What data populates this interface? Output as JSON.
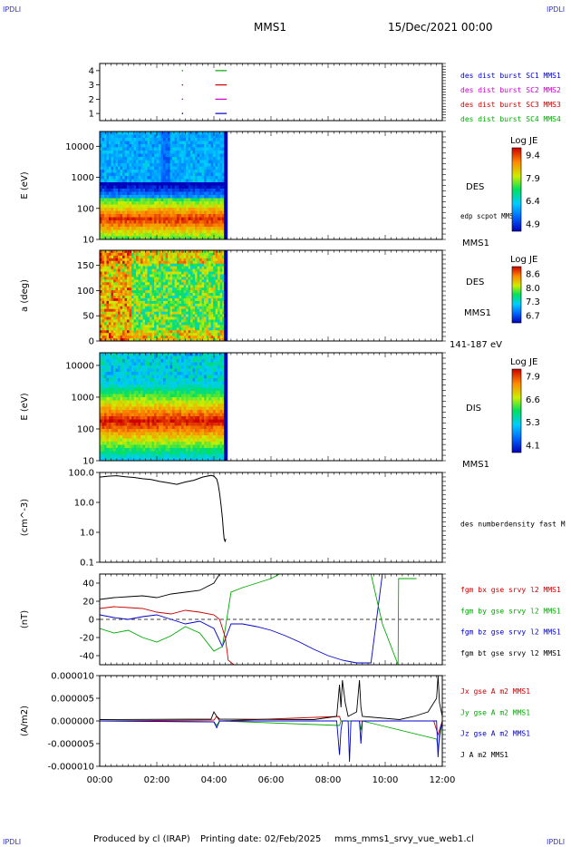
{
  "corner_labels": {
    "tl": "IPDLI",
    "tr": "IPDLI",
    "bl": "IPDLI",
    "br": "IPDLI"
  },
  "header": {
    "spacecraft": "MMS1",
    "date": "15/Dec/2021 00:00"
  },
  "footer": {
    "produced_by": "Produced by cl (IRAP)",
    "printing_date": "Printing date: 02/Feb/2025",
    "file": "mms_mms1_srvy_vue_web1.cl"
  },
  "colors": {
    "mms1": "#0000cc",
    "mms2": "#cc00cc",
    "mms3": "#cc0000",
    "mms4": "#00aa00",
    "bt": "#000000"
  },
  "chart_data": [
    {
      "type": "scatter",
      "id": "burst",
      "yticks": [
        "1",
        "2",
        "3",
        "4"
      ],
      "ylim": [
        0.5,
        4.5
      ],
      "legend": [
        {
          "label": "des dist burst SC1 MMS1",
          "color": "#0000cc"
        },
        {
          "label": "des dist burst SC2 MMS2",
          "color": "#cc00cc"
        },
        {
          "label": "des dist burst SC3 MMS3",
          "color": "#cc0000"
        },
        {
          "label": "des dist burst SC4 MMS4",
          "color": "#00aa00"
        }
      ],
      "segments": [
        {
          "sc": 1,
          "start": 4.05,
          "end": 4.45,
          "color": "#0000cc"
        },
        {
          "sc": 2,
          "start": 4.05,
          "end": 4.45,
          "color": "#cc00cc"
        },
        {
          "sc": 3,
          "start": 4.05,
          "end": 4.45,
          "color": "#cc0000"
        },
        {
          "sc": 4,
          "start": 4.05,
          "end": 4.45,
          "color": "#00aa00"
        }
      ],
      "dots": [
        {
          "sc": 1,
          "t": 2.9,
          "color": "#0000cc"
        },
        {
          "sc": 2,
          "t": 2.9,
          "color": "#cc00cc"
        },
        {
          "sc": 3,
          "t": 2.9,
          "color": "#cc0000"
        },
        {
          "sc": 4,
          "t": 2.9,
          "color": "#00aa00"
        }
      ]
    },
    {
      "type": "heatmap",
      "id": "des_energy",
      "ylabel": "E (eV)",
      "yscale": "log",
      "ylim": [
        10,
        30000
      ],
      "yticks": [
        "10",
        "100",
        "1000",
        "10000"
      ],
      "tlim": [
        0,
        4.45
      ],
      "side_label": "DES",
      "side_sub": "edp scpot MMS1",
      "side_bottom": "MMS1",
      "colorbar": {
        "title": "Log JE",
        "ticks": [
          "9.4",
          "7.9",
          "6.4",
          "4.9"
        ],
        "range": [
          4.9,
          9.4
        ]
      }
    },
    {
      "type": "heatmap",
      "id": "des_pitch",
      "ylabel": "a (deg)",
      "ylim": [
        0,
        180
      ],
      "yticks": [
        "0",
        "50",
        "100",
        "150"
      ],
      "tlim": [
        0,
        4.45
      ],
      "side_label": "DES",
      "side_sub": "MMS1",
      "side_bottom": "141-187 eV",
      "colorbar": {
        "title": "Log JE",
        "ticks": [
          "8.6",
          "8.0",
          "7.3",
          "6.7"
        ],
        "range": [
          6.7,
          8.6
        ]
      }
    },
    {
      "type": "heatmap",
      "id": "dis_energy",
      "ylabel": "E (eV)",
      "yscale": "log",
      "ylim": [
        10,
        25000
      ],
      "yticks": [
        "10",
        "100",
        "1000",
        "10000"
      ],
      "tlim": [
        0,
        4.45
      ],
      "side_label": "DIS",
      "side_bottom": "MMS1",
      "colorbar": {
        "title": "Log JE",
        "ticks": [
          "7.9",
          "6.6",
          "5.3",
          "4.1"
        ],
        "range": [
          4.1,
          7.9
        ]
      }
    },
    {
      "type": "line",
      "id": "density",
      "ylabel": "(cm^-3)",
      "yscale": "log",
      "ylim": [
        0.1,
        100
      ],
      "yticks": [
        "0.1",
        "1.0",
        "10.0",
        "100.0"
      ],
      "legend": [
        {
          "label": "des numberdensity fast M",
          "color": "#000000"
        }
      ],
      "series": [
        {
          "name": "des numberdensity fast M",
          "color": "#000000",
          "x": [
            0.0,
            0.3,
            0.6,
            0.9,
            1.2,
            1.5,
            1.8,
            2.1,
            2.4,
            2.7,
            3.0,
            3.3,
            3.6,
            3.9,
            4.0,
            4.1,
            4.15,
            4.2,
            4.25,
            4.3,
            4.33,
            4.36,
            4.39,
            4.42
          ],
          "y": [
            70,
            75,
            78,
            72,
            68,
            62,
            58,
            50,
            45,
            40,
            48,
            55,
            70,
            80,
            75,
            60,
            40,
            20,
            8,
            3,
            1.2,
            0.6,
            0.5,
            0.6
          ]
        }
      ]
    },
    {
      "type": "line",
      "id": "bfield",
      "ylabel": "(nT)",
      "ylim": [
        -50,
        50
      ],
      "yticks": [
        "-40",
        "-20",
        "0",
        "20",
        "40"
      ],
      "legend": [
        {
          "label": "fgm bx gse srvy l2 MMS1",
          "color": "#cc0000"
        },
        {
          "label": "fgm by gse srvy l2 MMS1",
          "color": "#00aa00"
        },
        {
          "label": "fgm bz gse srvy l2 MMS1",
          "color": "#0000cc"
        },
        {
          "label": "fgm bt gse srvy l2 MMS1",
          "color": "#000000"
        }
      ],
      "series": [
        {
          "name": "fgm bx gse srvy l2 MMS1",
          "color": "#cc0000",
          "x": [
            0.0,
            0.5,
            1.0,
            1.5,
            2.0,
            2.5,
            3.0,
            3.5,
            4.0,
            4.2,
            4.4,
            4.5,
            4.7,
            5.0
          ],
          "y": [
            12,
            14,
            13,
            12,
            8,
            6,
            10,
            8,
            5,
            0,
            -20,
            -45,
            -50,
            -50
          ]
        },
        {
          "name": "fgm by gse srvy l2 MMS1",
          "color": "#00aa00",
          "x": [
            0.0,
            0.5,
            1.0,
            1.5,
            2.0,
            2.5,
            3.0,
            3.5,
            4.0,
            4.3,
            4.6,
            5.0,
            5.5,
            6.0,
            6.3,
            9.5,
            9.9,
            10.45,
            10.47,
            11.1
          ],
          "y": [
            -10,
            -15,
            -12,
            -20,
            -25,
            -18,
            -8,
            -15,
            -35,
            -30,
            30,
            35,
            40,
            45,
            50,
            50,
            -5,
            -50,
            45,
            45
          ]
        },
        {
          "name": "fgm bz gse srvy l2 MMS1",
          "color": "#0000cc",
          "x": [
            0.0,
            0.5,
            1.0,
            1.5,
            2.0,
            2.5,
            3.0,
            3.5,
            4.0,
            4.3,
            4.6,
            5.0,
            5.5,
            6.0,
            6.5,
            7.0,
            7.5,
            8.0,
            8.5,
            9.0,
            9.5,
            9.9
          ],
          "y": [
            5,
            2,
            0,
            3,
            5,
            0,
            -5,
            -2,
            -10,
            -30,
            -5,
            -5,
            -8,
            -12,
            -18,
            -25,
            -33,
            -40,
            -45,
            -48,
            -48,
            50
          ]
        },
        {
          "name": "fgm bt gse srvy l2 MMS1",
          "color": "#000000",
          "x": [
            0.0,
            0.5,
            1.0,
            1.5,
            2.0,
            2.5,
            3.0,
            3.5,
            4.0,
            4.2,
            4.4
          ],
          "y": [
            22,
            24,
            25,
            26,
            24,
            28,
            30,
            32,
            40,
            50,
            50
          ]
        }
      ]
    },
    {
      "type": "line",
      "id": "current",
      "ylabel": "(A/m2)",
      "ylim": [
        -1e-05,
        1e-05
      ],
      "yticks": [
        "-0.000010",
        "-0.000005",
        "0.000000",
        "0.000005",
        "0.000010"
      ],
      "xticks": [
        "00:00",
        "02:00",
        "04:00",
        "06:00",
        "08:00",
        "10:00",
        "12:00"
      ],
      "xlim": [
        0,
        12
      ],
      "legend": [
        {
          "label": "Jx gse A m2 MMS1",
          "color": "#cc0000"
        },
        {
          "label": "Jy gse A m2 MMS1",
          "color": "#00aa00"
        },
        {
          "label": "Jz gse A m2 MMS1",
          "color": "#0000cc"
        },
        {
          "label": "J A m2 MMS1",
          "color": "#000000"
        }
      ],
      "series": [
        {
          "name": "J A m2 MMS1",
          "color": "#000000",
          "x": [
            0.0,
            3.9,
            4.0,
            4.1,
            4.2,
            7.5,
            8.3,
            8.4,
            8.45,
            8.5,
            8.6,
            8.7,
            9.0,
            9.1,
            9.15,
            9.2,
            10.5,
            11.0,
            11.5,
            11.8,
            11.85,
            11.9,
            12.0
          ],
          "y": [
            3e-07,
            4e-07,
            2e-06,
            1e-06,
            4e-07,
            3e-07,
            1e-06,
            8e-06,
            3e-06,
            9e-06,
            4e-06,
            1e-06,
            2e-06,
            9e-06,
            3e-06,
            1e-06,
            3e-07,
            1e-06,
            2e-06,
            5e-06,
            1e-05,
            4e-06,
            1e-06
          ]
        },
        {
          "name": "Jz gse A m2 MMS1",
          "color": "#0000cc",
          "x": [
            0.0,
            4.0,
            4.1,
            4.2,
            8.3,
            8.4,
            8.45,
            8.5,
            8.7,
            8.75,
            8.8,
            9.1,
            9.15,
            9.2,
            11.8,
            11.85,
            11.9,
            12.0
          ],
          "y": [
            0,
            -2e-07,
            -1.5e-06,
            0,
            0,
            -7.5e-06,
            -2e-06,
            0,
            0,
            -9e-06,
            0,
            0,
            -5e-06,
            0,
            0,
            -8e-06,
            -3e-06,
            0
          ]
        },
        {
          "name": "Jy gse A m2 MMS1",
          "color": "#00aa00",
          "x": [
            0.0,
            4.0,
            4.1,
            4.2,
            8.4,
            8.45,
            8.5,
            9.1,
            9.15,
            9.2,
            11.8,
            11.85,
            12.0
          ],
          "y": [
            0,
            -2e-07,
            -1e-06,
            0,
            -1e-06,
            0,
            0,
            0,
            -2e-06,
            0,
            -4e-06,
            -6e-06,
            0
          ]
        },
        {
          "name": "Jx gse A m2 MMS1",
          "color": "#cc0000",
          "x": [
            0.0,
            4.0,
            4.1,
            4.2,
            8.4,
            8.45,
            8.5,
            11.7,
            11.8,
            11.85,
            12.0
          ],
          "y": [
            0,
            2e-07,
            1e-06,
            0,
            1e-06,
            0,
            0,
            0,
            -2e-06,
            -3e-06,
            0
          ]
        }
      ]
    }
  ]
}
